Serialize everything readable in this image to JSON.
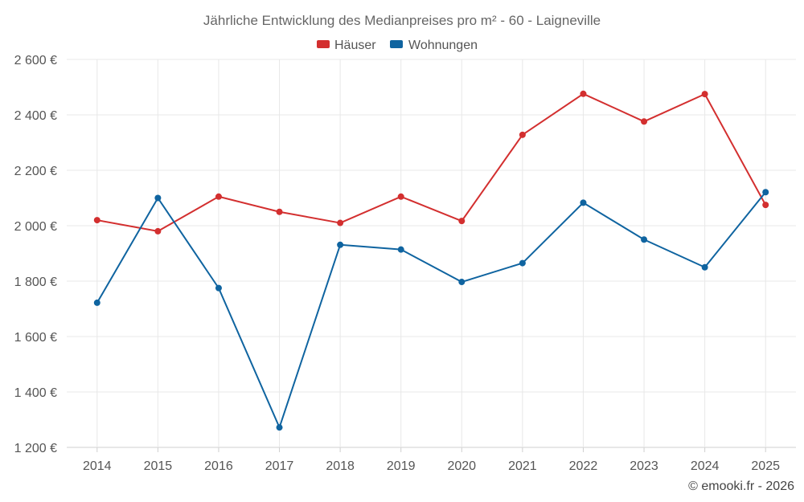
{
  "chart_data": {
    "type": "line",
    "title": "Jährliche Entwicklung des Medianpreises pro m² - 60 - Laigneville",
    "categories": [
      "2014",
      "2015",
      "2016",
      "2017",
      "2018",
      "2019",
      "2020",
      "2021",
      "2022",
      "2023",
      "2024",
      "2025"
    ],
    "series": [
      {
        "name": "Häuser",
        "color": "#d32f2f",
        "values": [
          2020,
          1980,
          2105,
          2050,
          2010,
          2105,
          2017,
          2328,
          2476,
          2376,
          2475,
          2075
        ]
      },
      {
        "name": "Wohnungen",
        "color": "#0f64a0",
        "values": [
          1722,
          2100,
          1775,
          1272,
          1931,
          1914,
          1797,
          1865,
          2083,
          1950,
          1850,
          2121
        ]
      }
    ],
    "ylim": [
      1200,
      2600
    ],
    "yticks": [
      1200,
      1400,
      1600,
      1800,
      2000,
      2200,
      2400,
      2600
    ],
    "ytick_labels": [
      "1 200 €",
      "1 400 €",
      "1 600 €",
      "1 800 €",
      "2 000 €",
      "2 200 €",
      "2 400 €",
      "2 600 €"
    ],
    "xlabel": "",
    "ylabel": "",
    "grid": true,
    "legend_position": "top-center"
  },
  "credit": "© emooki.fr - 2026"
}
